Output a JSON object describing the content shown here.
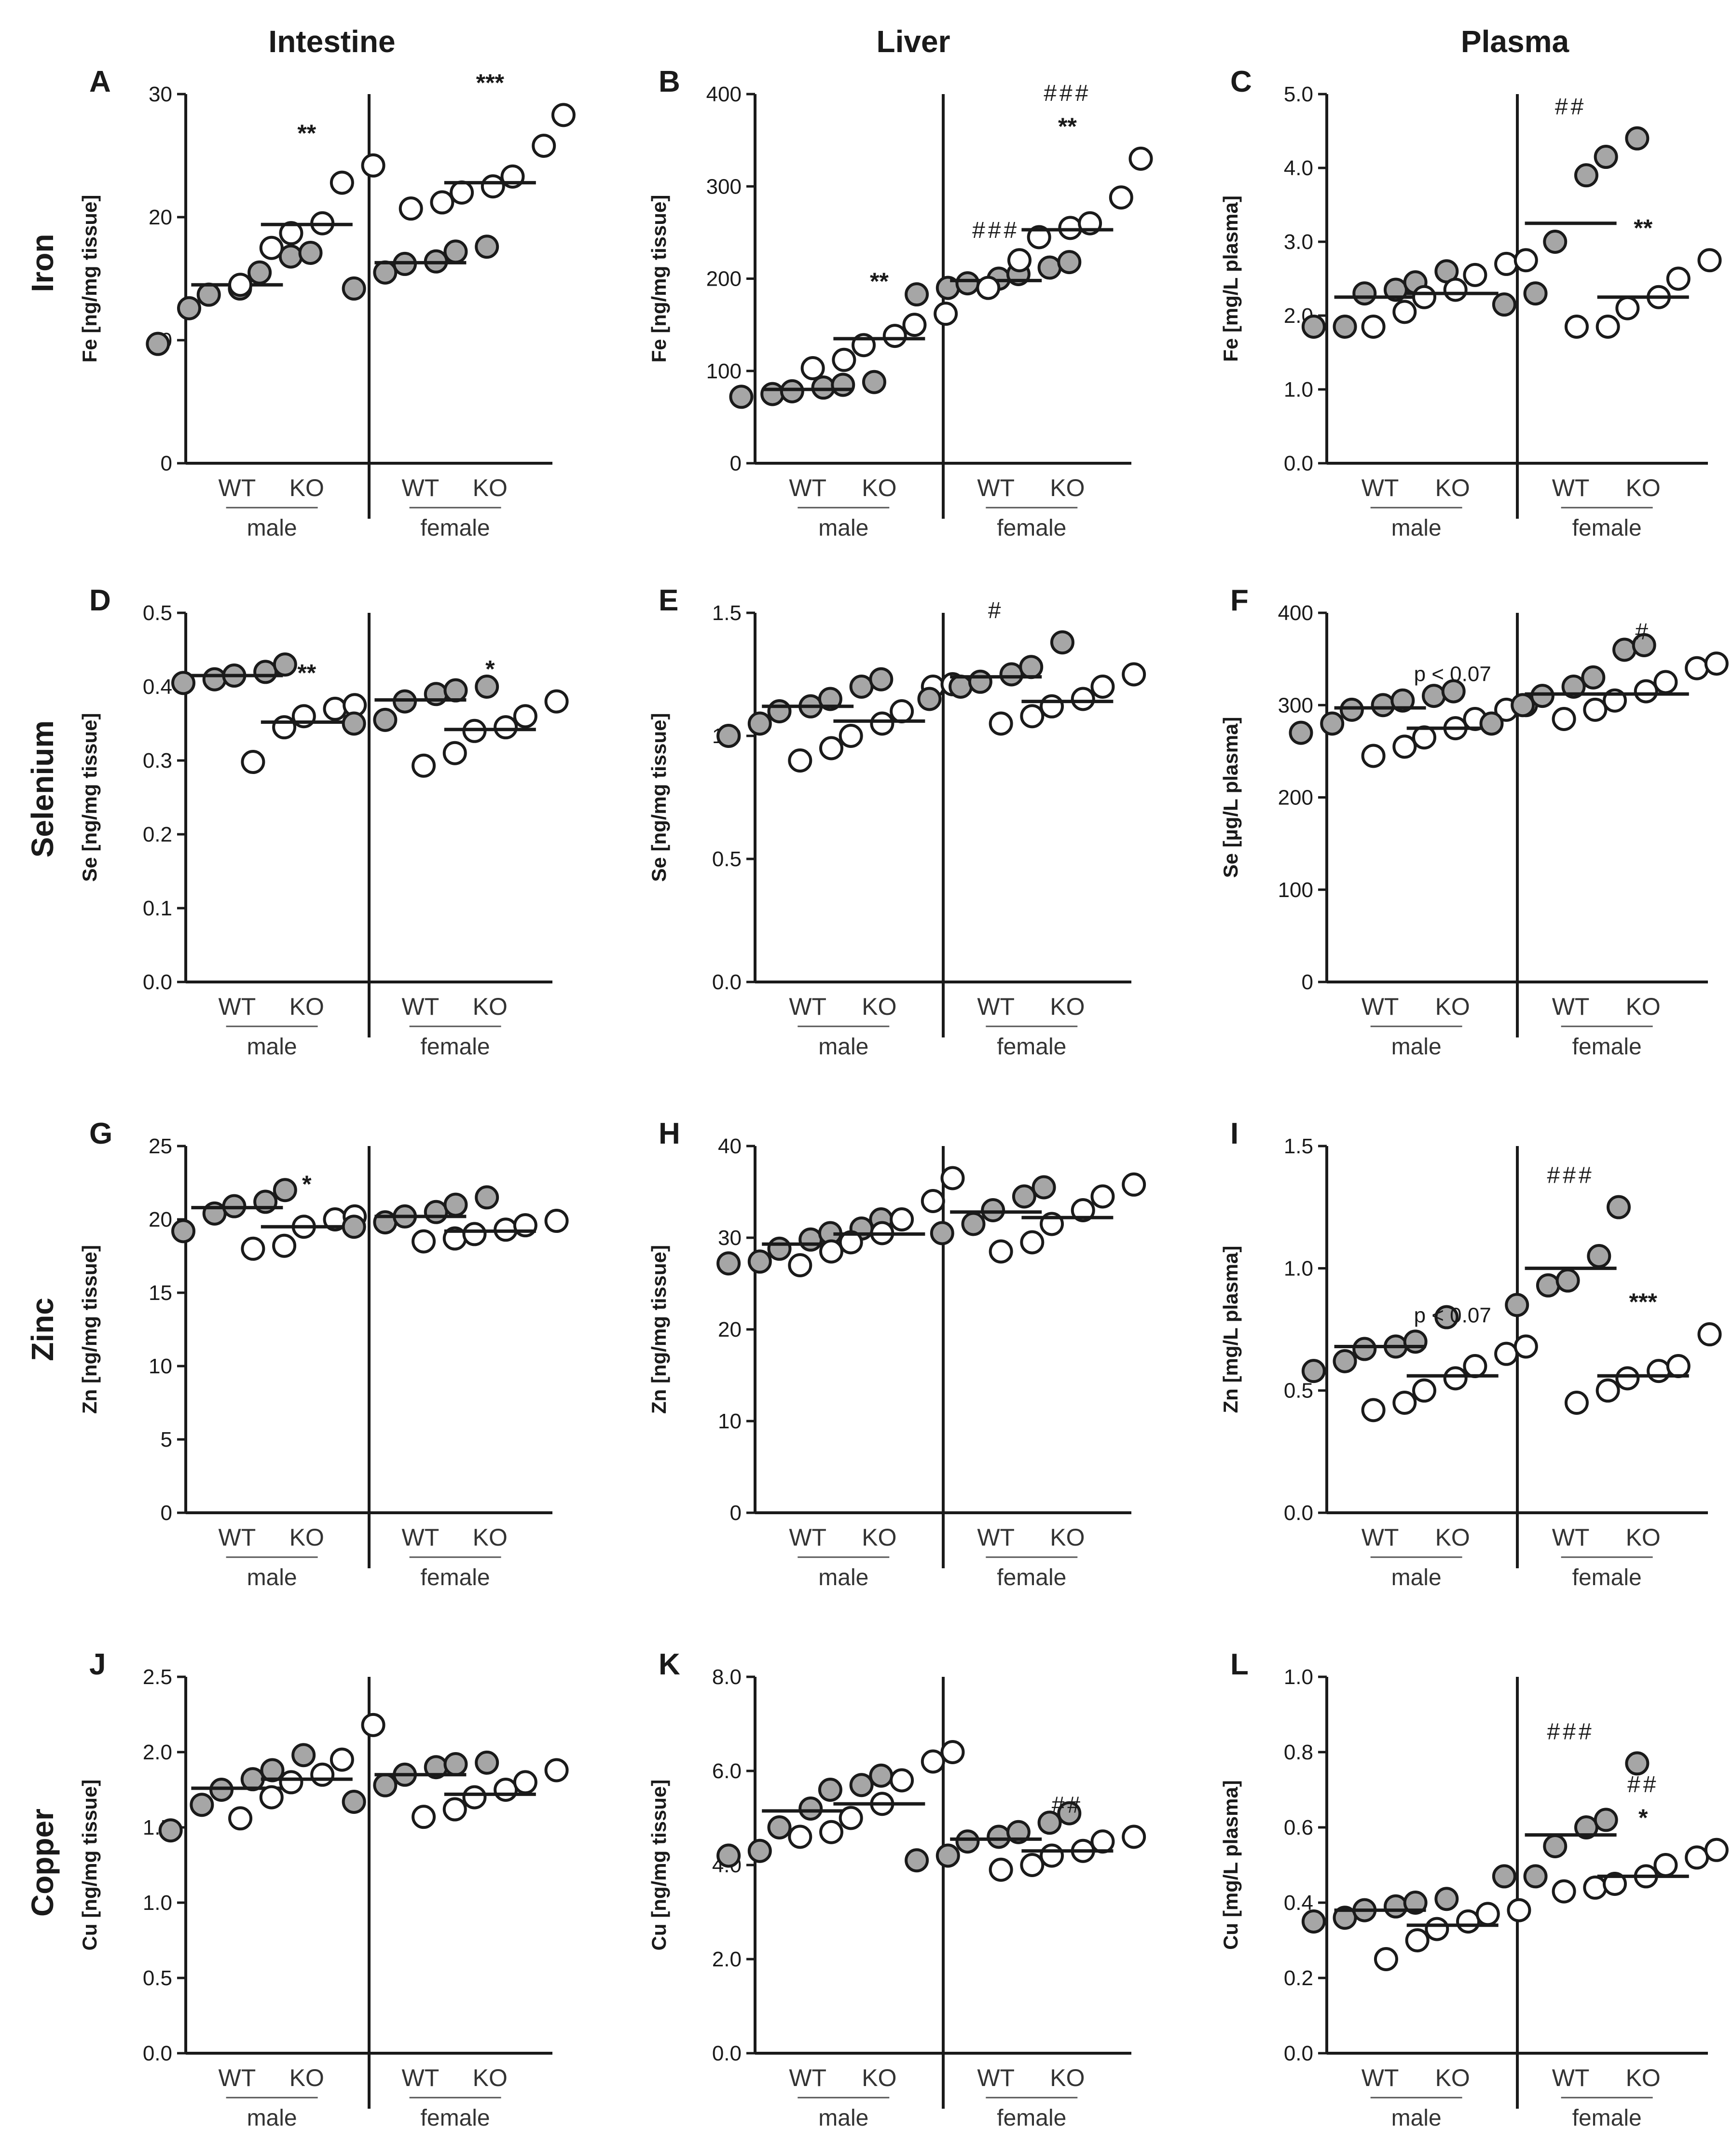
{
  "column_titles": [
    "Intestine",
    "Liver",
    "Plasma"
  ],
  "row_titles": [
    "Iron",
    "Selenium",
    "Zinc",
    "Copper"
  ],
  "groups": [
    "WT",
    "KO",
    "WT",
    "KO"
  ],
  "sex_labels": [
    "male",
    "female"
  ],
  "colors": {
    "wt_fill": "#a6a6a6",
    "ko_fill": "#ffffff",
    "stroke": "#1a1a1a"
  },
  "chart_data": [
    {
      "type": "scatter",
      "panel": "A",
      "tissue": "Intestine",
      "element": "Iron",
      "ylabel": "Fe [ng/mg tissue]",
      "ylim": [
        0,
        30
      ],
      "yticks": [
        0,
        10,
        20,
        30
      ],
      "tick_labels": [
        "0",
        "10",
        "20",
        "30"
      ],
      "groups": [
        {
          "label": "WT",
          "sex": "male",
          "mean": 14.5,
          "values": [
            9.7,
            12.6,
            13.7,
            14.2,
            15.5,
            16.8,
            17.1
          ],
          "annotations": []
        },
        {
          "label": "KO",
          "sex": "male",
          "mean": 19.4,
          "values": [
            14.5,
            17.5,
            18.7,
            19.5,
            22.8,
            24.2
          ],
          "annotations": [
            "**"
          ]
        },
        {
          "label": "WT",
          "sex": "female",
          "mean": 16.3,
          "values": [
            14.2,
            15.5,
            16.2,
            16.4,
            17.2,
            17.6
          ],
          "annotations": []
        },
        {
          "label": "KO",
          "sex": "female",
          "mean": 22.8,
          "values": [
            20.7,
            21.2,
            22.0,
            22.5,
            23.3,
            25.8,
            28.3
          ],
          "annotations": [
            "***"
          ]
        }
      ]
    },
    {
      "type": "scatter",
      "panel": "B",
      "tissue": "Liver",
      "element": "Iron",
      "ylabel": "Fe [ng/mg tissue]",
      "ylim": [
        0,
        400
      ],
      "yticks": [
        0,
        100,
        200,
        300,
        400
      ],
      "tick_labels": [
        "0",
        "100",
        "200",
        "300",
        "400"
      ],
      "groups": [
        {
          "label": "WT",
          "sex": "male",
          "mean": 80,
          "values": [
            72,
            75,
            78,
            82,
            85,
            88
          ],
          "annotations": []
        },
        {
          "label": "KO",
          "sex": "male",
          "mean": 135,
          "values": [
            103,
            112,
            128,
            138,
            150,
            162
          ],
          "annotations": [
            "**"
          ]
        },
        {
          "label": "WT",
          "sex": "female",
          "mean": 198,
          "values": [
            183,
            190,
            195,
            200,
            205,
            212,
            218
          ],
          "annotations": [
            "###"
          ]
        },
        {
          "label": "KO",
          "sex": "female",
          "mean": 253,
          "values": [
            190,
            220,
            245,
            255,
            260,
            288,
            330
          ],
          "annotations": [
            "###",
            "**"
          ]
        }
      ]
    },
    {
      "type": "scatter",
      "panel": "C",
      "tissue": "Plasma",
      "element": "Iron",
      "ylabel": "Fe [mg/L plasma]",
      "ylim": [
        0,
        5
      ],
      "yticks": [
        0,
        1,
        2,
        3,
        4,
        5
      ],
      "tick_labels": [
        "0.0",
        "1.0",
        "2.0",
        "3.0",
        "4.0",
        "5.0"
      ],
      "groups": [
        {
          "label": "WT",
          "sex": "male",
          "mean": 2.25,
          "values": [
            1.85,
            1.85,
            2.3,
            2.35,
            2.45,
            2.6
          ],
          "annotations": []
        },
        {
          "label": "KO",
          "sex": "male",
          "mean": 2.3,
          "values": [
            1.85,
            2.05,
            2.25,
            2.35,
            2.55,
            2.7,
            2.75
          ],
          "annotations": []
        },
        {
          "label": "WT",
          "sex": "female",
          "mean": 3.25,
          "values": [
            2.15,
            2.3,
            3.0,
            3.9,
            4.15,
            4.4
          ],
          "annotations": [
            "##"
          ]
        },
        {
          "label": "KO",
          "sex": "female",
          "mean": 2.25,
          "values": [
            1.85,
            1.85,
            2.1,
            2.25,
            2.5,
            2.75
          ],
          "annotations": [
            "**"
          ]
        }
      ]
    },
    {
      "type": "scatter",
      "panel": "D",
      "tissue": "Intestine",
      "element": "Selenium",
      "ylabel": "Se [ng/mg tissue]",
      "ylim": [
        0,
        0.5
      ],
      "yticks": [
        0,
        0.1,
        0.2,
        0.3,
        0.4,
        0.5
      ],
      "tick_labels": [
        "0.0",
        "0.1",
        "0.2",
        "0.3",
        "0.4",
        "0.5"
      ],
      "groups": [
        {
          "label": "WT",
          "sex": "male",
          "mean": 0.415,
          "values": [
            0.405,
            0.41,
            0.415,
            0.42,
            0.43
          ],
          "annotations": []
        },
        {
          "label": "KO",
          "sex": "male",
          "mean": 0.352,
          "values": [
            0.298,
            0.345,
            0.36,
            0.37,
            0.375
          ],
          "annotations": [
            "**"
          ]
        },
        {
          "label": "WT",
          "sex": "female",
          "mean": 0.382,
          "values": [
            0.35,
            0.355,
            0.38,
            0.39,
            0.395,
            0.4
          ],
          "annotations": []
        },
        {
          "label": "KO",
          "sex": "female",
          "mean": 0.342,
          "values": [
            0.293,
            0.31,
            0.34,
            0.345,
            0.36,
            0.38
          ],
          "annotations": [
            "*"
          ]
        }
      ]
    },
    {
      "type": "scatter",
      "panel": "E",
      "tissue": "Liver",
      "element": "Selenium",
      "ylabel": "Se [ng/mg tissue]",
      "ylim": [
        0,
        1.5
      ],
      "yticks": [
        0,
        0.5,
        1.0,
        1.5
      ],
      "tick_labels": [
        "0.0",
        "0.5",
        "1.0",
        "1.5"
      ],
      "groups": [
        {
          "label": "WT",
          "sex": "male",
          "mean": 1.12,
          "values": [
            1.0,
            1.05,
            1.1,
            1.12,
            1.15,
            1.2,
            1.23
          ],
          "annotations": []
        },
        {
          "label": "KO",
          "sex": "male",
          "mean": 1.06,
          "values": [
            0.9,
            0.95,
            1.0,
            1.05,
            1.1,
            1.2,
            1.21
          ],
          "annotations": []
        },
        {
          "label": "WT",
          "sex": "female",
          "mean": 1.24,
          "values": [
            1.15,
            1.2,
            1.22,
            1.25,
            1.28,
            1.38
          ],
          "annotations": [
            "#"
          ]
        },
        {
          "label": "KO",
          "sex": "female",
          "mean": 1.14,
          "values": [
            1.05,
            1.08,
            1.12,
            1.15,
            1.2,
            1.25
          ],
          "annotations": []
        }
      ]
    },
    {
      "type": "scatter",
      "panel": "F",
      "tissue": "Plasma",
      "element": "Selenium",
      "ylabel": "Se [µg/L plasma]",
      "ylim": [
        0,
        400
      ],
      "yticks": [
        0,
        100,
        200,
        300,
        400
      ],
      "tick_labels": [
        "0",
        "100",
        "200",
        "300",
        "400"
      ],
      "groups": [
        {
          "label": "WT",
          "sex": "male",
          "mean": 297,
          "values": [
            270,
            280,
            295,
            300,
            305,
            310,
            315
          ],
          "annotations": []
        },
        {
          "label": "KO",
          "sex": "male",
          "mean": 275,
          "values": [
            245,
            255,
            265,
            275,
            285,
            295,
            300
          ],
          "annotations": [
            "p < 0.07"
          ]
        },
        {
          "label": "WT",
          "sex": "female",
          "mean": 312,
          "values": [
            280,
            300,
            310,
            320,
            330,
            360,
            365
          ],
          "annotations": []
        },
        {
          "label": "KO",
          "sex": "female",
          "mean": 312,
          "values": [
            285,
            295,
            305,
            315,
            325,
            340,
            345
          ],
          "annotations": [
            "#"
          ]
        }
      ]
    },
    {
      "type": "scatter",
      "panel": "G",
      "tissue": "Intestine",
      "element": "Zinc",
      "ylabel": "Zn [ng/mg tissue]",
      "ylim": [
        0,
        25
      ],
      "yticks": [
        0,
        5,
        10,
        15,
        20,
        25
      ],
      "tick_labels": [
        "0",
        "5",
        "10",
        "15",
        "20",
        "25"
      ],
      "groups": [
        {
          "label": "WT",
          "sex": "male",
          "mean": 20.8,
          "values": [
            19.2,
            20.4,
            20.9,
            21.2,
            22.0
          ],
          "annotations": []
        },
        {
          "label": "KO",
          "sex": "male",
          "mean": 19.5,
          "values": [
            18.0,
            18.2,
            19.5,
            20.0,
            20.2
          ],
          "annotations": [
            "*"
          ]
        },
        {
          "label": "WT",
          "sex": "female",
          "mean": 20.2,
          "values": [
            19.5,
            19.8,
            20.2,
            20.5,
            21.0,
            21.5
          ],
          "annotations": []
        },
        {
          "label": "KO",
          "sex": "female",
          "mean": 19.2,
          "values": [
            18.5,
            18.7,
            19.0,
            19.3,
            19.6,
            19.9
          ],
          "annotations": []
        }
      ]
    },
    {
      "type": "scatter",
      "panel": "H",
      "tissue": "Liver",
      "element": "Zinc",
      "ylabel": "Zn [ng/mg tissue]",
      "ylim": [
        0,
        40
      ],
      "yticks": [
        0,
        10,
        20,
        30,
        40
      ],
      "tick_labels": [
        "0",
        "10",
        "20",
        "30",
        "40"
      ],
      "groups": [
        {
          "label": "WT",
          "sex": "male",
          "mean": 29.3,
          "values": [
            27.2,
            27.4,
            28.8,
            29.8,
            30.5,
            31.0,
            32.0
          ],
          "annotations": []
        },
        {
          "label": "KO",
          "sex": "male",
          "mean": 30.4,
          "values": [
            27.0,
            28.5,
            29.5,
            30.5,
            32.0,
            34.0,
            36.5
          ],
          "annotations": []
        },
        {
          "label": "WT",
          "sex": "female",
          "mean": 32.8,
          "values": [
            30.5,
            31.5,
            33.0,
            34.5,
            35.5
          ],
          "annotations": []
        },
        {
          "label": "KO",
          "sex": "female",
          "mean": 32.2,
          "values": [
            28.5,
            29.5,
            31.5,
            33.0,
            34.5,
            35.8
          ],
          "annotations": []
        }
      ]
    },
    {
      "type": "scatter",
      "panel": "I",
      "tissue": "Plasma",
      "element": "Zinc",
      "ylabel": "Zn [mg/L plasma]",
      "ylim": [
        0,
        1.5
      ],
      "yticks": [
        0,
        0.5,
        1.0,
        1.5
      ],
      "tick_labels": [
        "0.0",
        "0.5",
        "1.0",
        "1.5"
      ],
      "groups": [
        {
          "label": "WT",
          "sex": "male",
          "mean": 0.68,
          "values": [
            0.58,
            0.62,
            0.67,
            0.68,
            0.7,
            0.8
          ],
          "annotations": []
        },
        {
          "label": "KO",
          "sex": "male",
          "mean": 0.56,
          "values": [
            0.42,
            0.45,
            0.5,
            0.55,
            0.6,
            0.65,
            0.68
          ],
          "annotations": [
            "p < 0.07"
          ]
        },
        {
          "label": "WT",
          "sex": "female",
          "mean": 1.0,
          "values": [
            0.85,
            0.93,
            0.95,
            1.05,
            1.25
          ],
          "annotations": [
            "###"
          ]
        },
        {
          "label": "KO",
          "sex": "female",
          "mean": 0.56,
          "values": [
            0.45,
            0.5,
            0.55,
            0.58,
            0.6,
            0.73
          ],
          "annotations": [
            "***"
          ]
        }
      ]
    },
    {
      "type": "scatter",
      "panel": "J",
      "tissue": "Intestine",
      "element": "Copper",
      "ylabel": "Cu [ng/mg tissue]",
      "ylim": [
        0,
        2.5
      ],
      "yticks": [
        0,
        0.5,
        1.0,
        1.5,
        2.0,
        2.5
      ],
      "tick_labels": [
        "0.0",
        "0.5",
        "1.0",
        "1.5",
        "2.0",
        "2.5"
      ],
      "groups": [
        {
          "label": "WT",
          "sex": "male",
          "mean": 1.76,
          "values": [
            1.48,
            1.65,
            1.75,
            1.82,
            1.88,
            1.98
          ],
          "annotations": []
        },
        {
          "label": "KO",
          "sex": "male",
          "mean": 1.82,
          "values": [
            1.56,
            1.7,
            1.8,
            1.85,
            1.95,
            2.18
          ],
          "annotations": []
        },
        {
          "label": "WT",
          "sex": "female",
          "mean": 1.85,
          "values": [
            1.67,
            1.78,
            1.85,
            1.9,
            1.92,
            1.93
          ],
          "annotations": []
        },
        {
          "label": "KO",
          "sex": "female",
          "mean": 1.72,
          "values": [
            1.57,
            1.62,
            1.7,
            1.75,
            1.8,
            1.88
          ],
          "annotations": []
        }
      ]
    },
    {
      "type": "scatter",
      "panel": "K",
      "tissue": "Liver",
      "element": "Copper",
      "ylabel": "Cu [ng/mg tissue]",
      "ylim": [
        0,
        8
      ],
      "yticks": [
        0,
        2,
        4,
        6,
        8
      ],
      "tick_labels": [
        "0.0",
        "2.0",
        "4.0",
        "6.0",
        "8.0"
      ],
      "groups": [
        {
          "label": "WT",
          "sex": "male",
          "mean": 5.15,
          "values": [
            4.2,
            4.3,
            4.8,
            5.2,
            5.6,
            5.7,
            5.9
          ],
          "annotations": []
        },
        {
          "label": "KO",
          "sex": "male",
          "mean": 5.3,
          "values": [
            4.6,
            4.7,
            5.0,
            5.3,
            5.8,
            6.2,
            6.4
          ],
          "annotations": []
        },
        {
          "label": "WT",
          "sex": "female",
          "mean": 4.55,
          "values": [
            4.1,
            4.2,
            4.5,
            4.6,
            4.7,
            4.9,
            5.1
          ],
          "annotations": []
        },
        {
          "label": "KO",
          "sex": "female",
          "mean": 4.3,
          "values": [
            3.9,
            4.0,
            4.2,
            4.3,
            4.5,
            4.6
          ],
          "annotations": [
            "##"
          ]
        }
      ]
    },
    {
      "type": "scatter",
      "panel": "L",
      "tissue": "Plasma",
      "element": "Copper",
      "ylabel": "Cu [mg/L plasma]",
      "ylim": [
        0,
        1
      ],
      "yticks": [
        0,
        0.2,
        0.4,
        0.6,
        0.8,
        1.0
      ],
      "tick_labels": [
        "0.0",
        "0.2",
        "0.4",
        "0.6",
        "0.8",
        "1.0"
      ],
      "groups": [
        {
          "label": "WT",
          "sex": "male",
          "mean": 0.38,
          "values": [
            0.35,
            0.36,
            0.38,
            0.39,
            0.4,
            0.41
          ],
          "annotations": []
        },
        {
          "label": "KO",
          "sex": "male",
          "mean": 0.34,
          "values": [
            0.25,
            0.3,
            0.33,
            0.35,
            0.37,
            0.38
          ],
          "annotations": []
        },
        {
          "label": "WT",
          "sex": "female",
          "mean": 0.58,
          "values": [
            0.47,
            0.47,
            0.55,
            0.6,
            0.62,
            0.77
          ],
          "annotations": [
            "###"
          ]
        },
        {
          "label": "KO",
          "sex": "female",
          "mean": 0.47,
          "values": [
            0.43,
            0.44,
            0.45,
            0.47,
            0.5,
            0.52,
            0.54
          ],
          "annotations": [
            "##",
            "*"
          ]
        }
      ]
    }
  ]
}
